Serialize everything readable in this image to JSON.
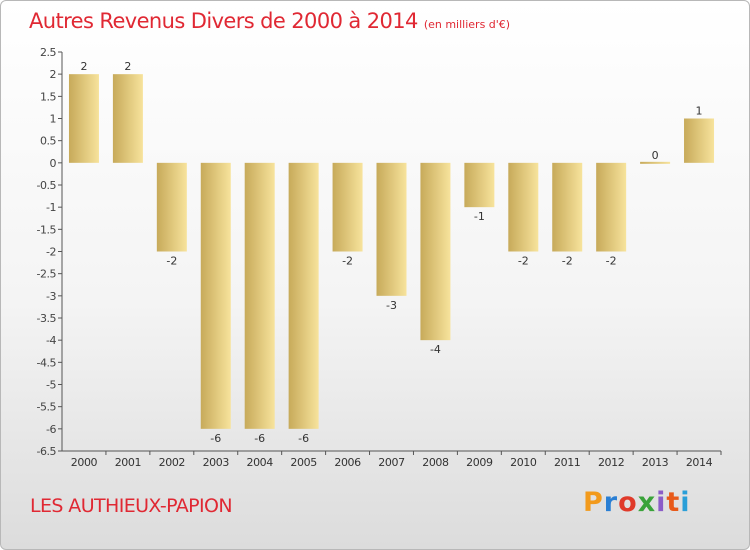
{
  "header": {
    "title": "Autres Revenus Divers de 2000 à 2014",
    "unit": "(en milliers d'€)"
  },
  "footer": {
    "commune": "LES AUTHIEUX-PAPION",
    "brand_letters": [
      "P",
      "r",
      "o",
      "x",
      "i",
      "t",
      "i"
    ],
    "brand_colors": [
      "#f29a1c",
      "#2a7fd4",
      "#e03a2a",
      "#3aa33a",
      "#8b5cc8",
      "#e85a1a",
      "#2a9fd8"
    ]
  },
  "colors": {
    "title": "#e02833",
    "bar_light": "#f7e39c",
    "bar_dark": "#c7aa5a",
    "axis": "#555555"
  },
  "chart_data": {
    "type": "bar",
    "categories": [
      "2000",
      "2001",
      "2002",
      "2003",
      "2004",
      "2005",
      "2006",
      "2007",
      "2008",
      "2009",
      "2010",
      "2011",
      "2012",
      "2013",
      "2014"
    ],
    "values": [
      2,
      2,
      -2,
      -6,
      -6,
      -6,
      -2,
      -3,
      -4,
      -1,
      -2,
      -2,
      -2,
      0,
      1
    ],
    "ylim": [
      -6.5,
      2.5
    ],
    "yticks": [
      "2.5",
      "2",
      "1.5",
      "1",
      "0.5",
      "0",
      "-0.5",
      "-1",
      "-1.5",
      "-2",
      "-2.5",
      "-3",
      "-3.5",
      "-4",
      "-4.5",
      "-5",
      "-5.5",
      "-6",
      "-6.5"
    ],
    "ytick_values": [
      2.5,
      2,
      1.5,
      1,
      0.5,
      0,
      -0.5,
      -1,
      -1.5,
      -2,
      -2.5,
      -3,
      -3.5,
      -4,
      -4.5,
      -5,
      -5.5,
      -6,
      -6.5
    ],
    "grid": false
  }
}
